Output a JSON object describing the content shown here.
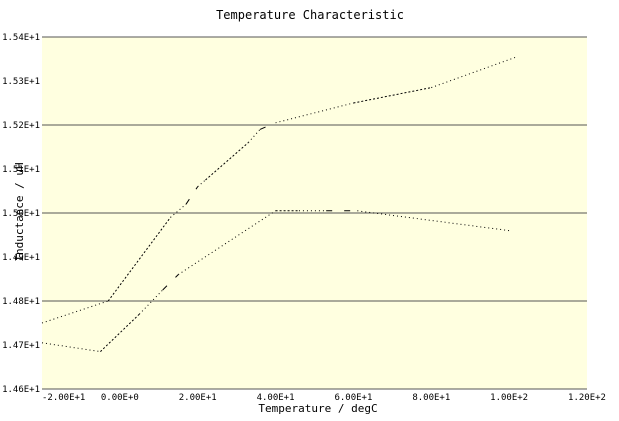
{
  "chart_data": {
    "type": "line",
    "title": "Temperature Characteristic",
    "xlabel": "Temperature / degC",
    "ylabel": "Inductance / uH",
    "xlim": [
      -20,
      120
    ],
    "ylim": [
      14.6,
      15.4
    ],
    "x_ticks": [
      -20,
      0,
      20,
      40,
      60,
      80,
      100,
      120
    ],
    "x_tick_labels": [
      "-2.00E+1",
      "0.00E+0",
      "2.00E+1",
      "4.00E+1",
      "6.00E+1",
      "8.00E+1",
      "1.00E+2",
      "1.20E+2"
    ],
    "y_ticks": [
      14.6,
      14.7,
      14.8,
      14.9,
      15.0,
      15.1,
      15.2,
      15.3,
      15.4
    ],
    "y_tick_labels": [
      "1.46E+1",
      "1.47E+1",
      "1.48E+1",
      "1.49E+1",
      "1.50E+1",
      "1.51E+1",
      "1.52E+1",
      "1.53E+1",
      "1.54E+1"
    ],
    "grid": true,
    "colors": {
      "plot_bg": "#ffffe0",
      "gridline": "#555555",
      "line": "#000000"
    },
    "series": [
      {
        "values": [
          {
            "x": -20,
            "y": 14.75
          },
          {
            "x": -3,
            "y": 14.8
          },
          {
            "x": 13,
            "y": 14.99
          },
          {
            "x": 17,
            "y": 15.02
          },
          {
            "x": 20,
            "y": 15.06
          },
          {
            "x": 22,
            "y": 15.075
          },
          {
            "x": 33,
            "y": 15.16
          },
          {
            "x": 36,
            "y": 15.19
          },
          {
            "x": 40,
            "y": 15.205
          },
          {
            "x": 60,
            "y": 15.25
          },
          {
            "x": 80,
            "y": 15.285
          },
          {
            "x": 102,
            "y": 15.355
          }
        ]
      },
      {
        "values": [
          {
            "x": -20,
            "y": 14.705
          },
          {
            "x": -5,
            "y": 14.685
          },
          {
            "x": 5,
            "y": 14.77
          },
          {
            "x": 11,
            "y": 14.825
          },
          {
            "x": 15,
            "y": 14.86
          },
          {
            "x": 40,
            "y": 15.005
          },
          {
            "x": 46,
            "y": 15.005
          },
          {
            "x": 53,
            "y": 15.005
          },
          {
            "x": 61,
            "y": 15.005
          },
          {
            "x": 100,
            "y": 14.96
          }
        ]
      }
    ]
  }
}
